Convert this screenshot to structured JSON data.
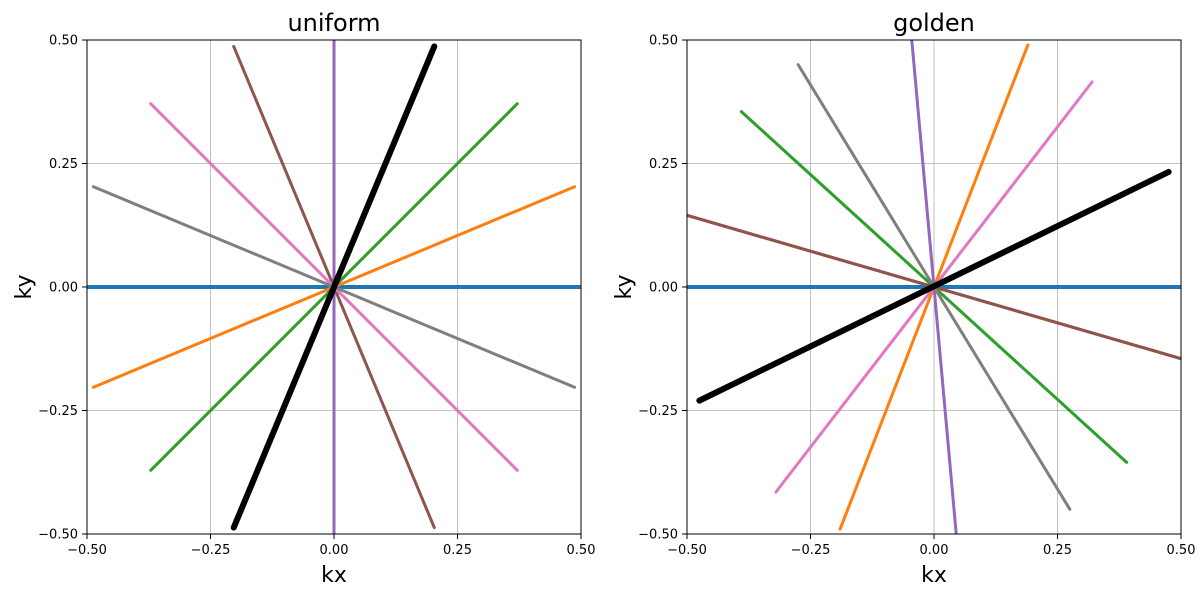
{
  "chart_data": [
    {
      "type": "line",
      "title": "uniform",
      "xlabel": "kx",
      "ylabel": "ky",
      "xlim": [
        -0.5,
        0.5
      ],
      "ylim": [
        -0.5,
        0.5
      ],
      "xticks": [
        "−0.50",
        "−0.25",
        "0.00",
        "0.25",
        "0.50"
      ],
      "yticks": [
        "−0.50",
        "−0.25",
        "0.00",
        "0.25",
        "0.50"
      ],
      "grid": true,
      "series": [
        {
          "color": "#1f77b4",
          "x": [
            -0.5,
            0.5
          ],
          "y": [
            0.0,
            0.0
          ],
          "bold": true
        },
        {
          "color": "#ff7f0e",
          "x": [
            -0.487,
            0.487
          ],
          "y": [
            -0.203,
            0.203
          ]
        },
        {
          "color": "#2ca02c",
          "x": [
            -0.371,
            0.371
          ],
          "y": [
            -0.371,
            0.371
          ]
        },
        {
          "color": "#d62728",
          "x": [
            -0.203,
            0.203
          ],
          "y": [
            -0.487,
            0.487
          ]
        },
        {
          "color": "#9467bd",
          "x": [
            0.0,
            0.0
          ],
          "y": [
            -0.5,
            0.5
          ]
        },
        {
          "color": "#8c564b",
          "x": [
            0.203,
            -0.203
          ],
          "y": [
            -0.487,
            0.487
          ]
        },
        {
          "color": "#e377c2",
          "x": [
            0.371,
            -0.371
          ],
          "y": [
            -0.371,
            0.371
          ]
        },
        {
          "color": "#7f7f7f",
          "x": [
            0.487,
            -0.487
          ],
          "y": [
            -0.203,
            0.203
          ]
        },
        {
          "color": "#000000",
          "x": [
            -0.203,
            0.203
          ],
          "y": [
            -0.487,
            0.487
          ],
          "bold": true
        }
      ]
    },
    {
      "type": "line",
      "title": "golden",
      "xlabel": "kx",
      "ylabel": "ky",
      "xlim": [
        -0.5,
        0.5
      ],
      "ylim": [
        -0.5,
        0.5
      ],
      "xticks": [
        "−0.50",
        "−0.25",
        "0.00",
        "0.25",
        "0.50"
      ],
      "yticks": [
        "−0.50",
        "−0.25",
        "0.00",
        "0.25",
        "0.50"
      ],
      "grid": true,
      "series": [
        {
          "color": "#1f77b4",
          "x": [
            -0.5,
            0.5
          ],
          "y": [
            0.0,
            0.0
          ],
          "bold": true
        },
        {
          "color": "#ff7f0e",
          "x": [
            -0.19,
            0.19
          ],
          "y": [
            -0.49,
            0.49
          ]
        },
        {
          "color": "#2ca02c",
          "x": [
            -0.39,
            0.39
          ],
          "y": [
            0.355,
            -0.355
          ]
        },
        {
          "color": "#d62728",
          "x": [
            -0.5,
            0.5
          ],
          "y": [
            0.145,
            -0.145
          ]
        },
        {
          "color": "#9467bd",
          "x": [
            -0.045,
            0.045
          ],
          "y": [
            0.5,
            -0.5
          ]
        },
        {
          "color": "#8c564b",
          "x": [
            -0.5,
            0.5
          ],
          "y": [
            0.145,
            -0.145
          ]
        },
        {
          "color": "#e377c2",
          "x": [
            -0.32,
            0.32
          ],
          "y": [
            -0.415,
            0.415
          ]
        },
        {
          "color": "#7f7f7f",
          "x": [
            -0.275,
            0.275
          ],
          "y": [
            0.45,
            -0.45
          ]
        },
        {
          "color": "#000000",
          "x": [
            -0.475,
            0.475
          ],
          "y": [
            -0.23,
            0.233
          ],
          "bold": true
        }
      ]
    }
  ]
}
